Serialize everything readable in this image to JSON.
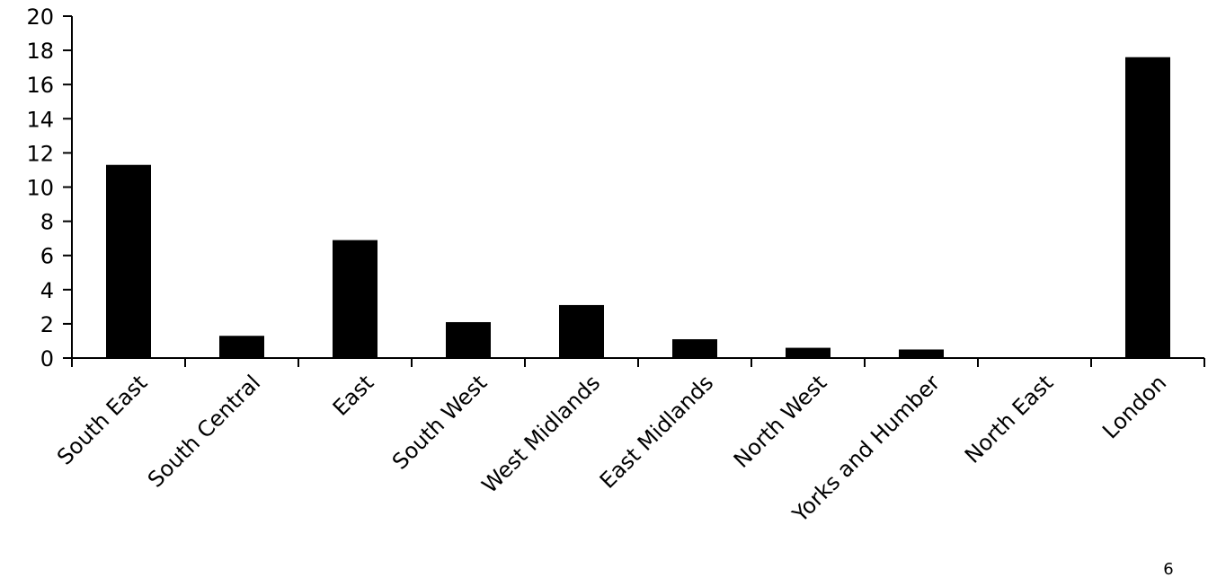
{
  "chart_data": {
    "type": "bar",
    "categories": [
      "South East",
      "South Central",
      "East",
      "South West",
      "West Midlands",
      "East Midlands",
      "North West",
      "Yorks and Humber",
      "North East",
      "London"
    ],
    "values": [
      11.3,
      1.3,
      6.9,
      2.1,
      3.1,
      1.1,
      0.6,
      0.5,
      0,
      17.6
    ],
    "color": "#000000",
    "ylim": [
      0,
      20
    ],
    "yticks": [
      0,
      2,
      4,
      6,
      8,
      10,
      12,
      14,
      16,
      18,
      20
    ],
    "grid": false,
    "annotation": "6"
  }
}
